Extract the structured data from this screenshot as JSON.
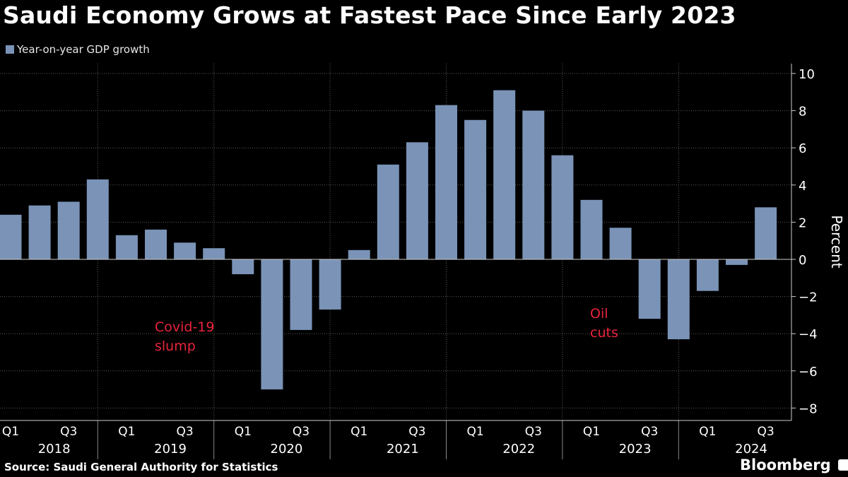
{
  "title": "Saudi Economy Grows at Fastest Pace Since Early 2023",
  "source": "Source: Saudi General Authority for Statistics",
  "brand": "Bloomberg",
  "colors": {
    "bar": "#7a93b7",
    "annotation": "#e8243c",
    "grid": "#555555"
  },
  "chart_data": {
    "type": "bar",
    "title": "Saudi Economy Grows at Fastest Pace Since Early 2023",
    "ylabel": "Percent",
    "xlabel": "",
    "ylim": [
      -8.5,
      10.5
    ],
    "yticks": [
      -8,
      -6,
      -4,
      -2,
      0,
      2,
      4,
      6,
      8,
      10
    ],
    "legend": "top-left",
    "series": [
      {
        "name": "Year-on-year GDP growth",
        "values": [
          2.4,
          2.9,
          3.1,
          4.3,
          1.3,
          1.6,
          0.9,
          0.6,
          -0.8,
          -7.0,
          -3.8,
          -2.7,
          0.5,
          5.1,
          6.3,
          8.3,
          7.5,
          9.1,
          8.0,
          5.6,
          3.2,
          1.7,
          -3.2,
          -4.3,
          -1.7,
          -0.3,
          2.8
        ]
      }
    ],
    "categories": [
      "2018 Q1",
      "2018 Q2",
      "2018 Q3",
      "2018 Q4",
      "2019 Q1",
      "2019 Q2",
      "2019 Q3",
      "2019 Q4",
      "2020 Q1",
      "2020 Q2",
      "2020 Q3",
      "2020 Q4",
      "2021 Q1",
      "2021 Q2",
      "2021 Q3",
      "2021 Q4",
      "2022 Q1",
      "2022 Q2",
      "2022 Q3",
      "2022 Q4",
      "2023 Q1",
      "2023 Q2",
      "2023 Q3",
      "2023 Q4",
      "2024 Q1",
      "2024 Q2",
      "2024 Q3"
    ],
    "quarter_labels": [
      "Q1",
      "Q3"
    ],
    "years": [
      "2018",
      "2019",
      "2020",
      "2021",
      "2022",
      "2023",
      "2024"
    ],
    "annotations": [
      {
        "text": [
          "Covid-19",
          "slump"
        ],
        "near": "2020 Q1"
      },
      {
        "text": [
          "Oil",
          "cuts"
        ],
        "near": "2023 Q2"
      }
    ]
  }
}
